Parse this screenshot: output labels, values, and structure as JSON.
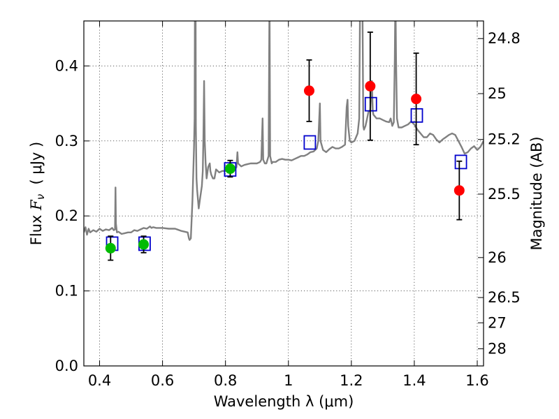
{
  "chart_data": {
    "type": "scatter",
    "xlabel": "Wavelength  λ (μm)",
    "ylabel": "Flux  F_ν  ( μJy )",
    "ylabel_parts": {
      "prefix": "Flux ",
      "symbol": "F",
      "sub": "ν",
      "unit": "( μJy )"
    },
    "y2label": "Magnitude (AB)",
    "xlim": [
      0.35,
      1.62
    ],
    "ylim": [
      0.0,
      0.46
    ],
    "grid": true,
    "xticks": [
      0.4,
      0.6,
      0.8,
      1.0,
      1.2,
      1.4,
      1.6
    ],
    "xtick_labels": [
      "0.4",
      "0.6",
      "0.8",
      "1",
      "1.2",
      "1.4",
      "1.6"
    ],
    "yticks": [
      0.0,
      0.1,
      0.2,
      0.3,
      0.4
    ],
    "ytick_labels": [
      "0.0",
      "0.1",
      "0.2",
      "0.3",
      "0.4"
    ],
    "right_axis_ticks": [
      {
        "label": "24.8",
        "flux": 0.4365
      },
      {
        "label": "25",
        "flux": 0.3631
      },
      {
        "label": "25.2",
        "flux": 0.302
      },
      {
        "label": "25.5",
        "flux": 0.2291
      },
      {
        "label": "26",
        "flux": 0.1445
      },
      {
        "label": "26.5",
        "flux": 0.0912
      },
      {
        "label": "27",
        "flux": 0.0575
      },
      {
        "label": "28",
        "flux": 0.0229
      }
    ],
    "series": [
      {
        "kind": "spectrum",
        "color": "#808080",
        "points": [
          [
            0.35,
            0.178
          ],
          [
            0.355,
            0.185
          ],
          [
            0.36,
            0.175
          ],
          [
            0.365,
            0.183
          ],
          [
            0.37,
            0.178
          ],
          [
            0.38,
            0.181
          ],
          [
            0.39,
            0.179
          ],
          [
            0.4,
            0.183
          ],
          [
            0.41,
            0.18
          ],
          [
            0.42,
            0.182
          ],
          [
            0.43,
            0.181
          ],
          [
            0.44,
            0.184
          ],
          [
            0.445,
            0.181
          ],
          [
            0.449,
            0.182
          ],
          [
            0.4505,
            0.238
          ],
          [
            0.452,
            0.19
          ],
          [
            0.455,
            0.178
          ],
          [
            0.46,
            0.179
          ],
          [
            0.47,
            0.176
          ],
          [
            0.48,
            0.177
          ],
          [
            0.49,
            0.178
          ],
          [
            0.5,
            0.178
          ],
          [
            0.51,
            0.181
          ],
          [
            0.52,
            0.18
          ],
          [
            0.53,
            0.182
          ],
          [
            0.54,
            0.184
          ],
          [
            0.55,
            0.183
          ],
          [
            0.56,
            0.186
          ],
          [
            0.565,
            0.184
          ],
          [
            0.57,
            0.185
          ],
          [
            0.58,
            0.184
          ],
          [
            0.6,
            0.184
          ],
          [
            0.62,
            0.183
          ],
          [
            0.64,
            0.183
          ],
          [
            0.66,
            0.18
          ],
          [
            0.68,
            0.178
          ],
          [
            0.684,
            0.17
          ],
          [
            0.686,
            0.168
          ],
          [
            0.69,
            0.17
          ],
          [
            0.695,
            0.22
          ],
          [
            0.7,
            0.29
          ],
          [
            0.702,
            0.33
          ],
          [
            0.703,
            0.5
          ],
          [
            0.705,
            0.5
          ],
          [
            0.706,
            0.32
          ],
          [
            0.708,
            0.25
          ],
          [
            0.71,
            0.235
          ],
          [
            0.715,
            0.21
          ],
          [
            0.72,
            0.225
          ],
          [
            0.725,
            0.24
          ],
          [
            0.728,
            0.26
          ],
          [
            0.73,
            0.305
          ],
          [
            0.732,
            0.38
          ],
          [
            0.734,
            0.3
          ],
          [
            0.737,
            0.27
          ],
          [
            0.74,
            0.25
          ],
          [
            0.745,
            0.265
          ],
          [
            0.75,
            0.27
          ],
          [
            0.752,
            0.26
          ],
          [
            0.755,
            0.255
          ],
          [
            0.76,
            0.25
          ],
          [
            0.765,
            0.25
          ],
          [
            0.77,
            0.262
          ],
          [
            0.78,
            0.258
          ],
          [
            0.79,
            0.26
          ],
          [
            0.8,
            0.26
          ],
          [
            0.81,
            0.262
          ],
          [
            0.82,
            0.263
          ],
          [
            0.83,
            0.262
          ],
          [
            0.835,
            0.265
          ],
          [
            0.838,
            0.285
          ],
          [
            0.84,
            0.27
          ],
          [
            0.85,
            0.266
          ],
          [
            0.86,
            0.268
          ],
          [
            0.87,
            0.269
          ],
          [
            0.88,
            0.27
          ],
          [
            0.89,
            0.27
          ],
          [
            0.9,
            0.27
          ],
          [
            0.91,
            0.272
          ],
          [
            0.914,
            0.275
          ],
          [
            0.918,
            0.33
          ],
          [
            0.92,
            0.275
          ],
          [
            0.925,
            0.27
          ],
          [
            0.93,
            0.27
          ],
          [
            0.937,
            0.28
          ],
          [
            0.94,
            0.5
          ],
          [
            0.942,
            0.28
          ],
          [
            0.947,
            0.27
          ],
          [
            0.95,
            0.272
          ],
          [
            0.96,
            0.272
          ],
          [
            0.97,
            0.275
          ],
          [
            0.98,
            0.276
          ],
          [
            0.99,
            0.275
          ],
          [
            1.0,
            0.275
          ],
          [
            1.01,
            0.274
          ],
          [
            1.02,
            0.276
          ],
          [
            1.03,
            0.278
          ],
          [
            1.04,
            0.28
          ],
          [
            1.05,
            0.28
          ],
          [
            1.06,
            0.282
          ],
          [
            1.07,
            0.285
          ],
          [
            1.08,
            0.286
          ],
          [
            1.09,
            0.29
          ],
          [
            1.095,
            0.3
          ],
          [
            1.1,
            0.35
          ],
          [
            1.102,
            0.3
          ],
          [
            1.11,
            0.288
          ],
          [
            1.12,
            0.285
          ],
          [
            1.13,
            0.289
          ],
          [
            1.14,
            0.292
          ],
          [
            1.15,
            0.29
          ],
          [
            1.16,
            0.29
          ],
          [
            1.17,
            0.292
          ],
          [
            1.18,
            0.295
          ],
          [
            1.185,
            0.345
          ],
          [
            1.188,
            0.355
          ],
          [
            1.19,
            0.32
          ],
          [
            1.195,
            0.3
          ],
          [
            1.2,
            0.298
          ],
          [
            1.21,
            0.3
          ],
          [
            1.22,
            0.31
          ],
          [
            1.225,
            0.33
          ],
          [
            1.228,
            0.5
          ],
          [
            1.235,
            0.5
          ],
          [
            1.238,
            0.32
          ],
          [
            1.24,
            0.315
          ],
          [
            1.245,
            0.32
          ],
          [
            1.25,
            0.33
          ],
          [
            1.255,
            0.34
          ],
          [
            1.26,
            0.34
          ],
          [
            1.265,
            0.38
          ],
          [
            1.268,
            0.34
          ],
          [
            1.27,
            0.335
          ],
          [
            1.28,
            0.33
          ],
          [
            1.29,
            0.33
          ],
          [
            1.3,
            0.328
          ],
          [
            1.31,
            0.326
          ],
          [
            1.32,
            0.325
          ],
          [
            1.325,
            0.33
          ],
          [
            1.33,
            0.32
          ],
          [
            1.335,
            0.325
          ],
          [
            1.338,
            0.41
          ],
          [
            1.34,
            0.5
          ],
          [
            1.342,
            0.41
          ],
          [
            1.345,
            0.33
          ],
          [
            1.35,
            0.318
          ],
          [
            1.36,
            0.318
          ],
          [
            1.37,
            0.32
          ],
          [
            1.38,
            0.322
          ],
          [
            1.39,
            0.326
          ],
          [
            1.4,
            0.322
          ],
          [
            1.41,
            0.315
          ],
          [
            1.42,
            0.31
          ],
          [
            1.43,
            0.305
          ],
          [
            1.44,
            0.305
          ],
          [
            1.45,
            0.31
          ],
          [
            1.46,
            0.308
          ],
          [
            1.47,
            0.302
          ],
          [
            1.48,
            0.298
          ],
          [
            1.49,
            0.302
          ],
          [
            1.5,
            0.305
          ],
          [
            1.51,
            0.308
          ],
          [
            1.52,
            0.31
          ],
          [
            1.53,
            0.308
          ],
          [
            1.54,
            0.3
          ],
          [
            1.55,
            0.292
          ],
          [
            1.56,
            0.283
          ],
          [
            1.57,
            0.285
          ],
          [
            1.58,
            0.29
          ],
          [
            1.59,
            0.293
          ],
          [
            1.6,
            0.288
          ],
          [
            1.61,
            0.292
          ],
          [
            1.62,
            0.3
          ]
        ]
      },
      {
        "kind": "model-photometry",
        "marker": "open-square",
        "color": "#0000cc",
        "points": [
          [
            0.44,
            0.163
          ],
          [
            0.543,
            0.163
          ],
          [
            0.815,
            0.262
          ],
          [
            1.068,
            0.298
          ],
          [
            1.262,
            0.349
          ],
          [
            1.408,
            0.334
          ],
          [
            1.548,
            0.272
          ]
        ]
      },
      {
        "kind": "measured",
        "marker": "filled-circle",
        "color": "#00bb00",
        "points": [
          {
            "x": 0.435,
            "y": 0.157,
            "err": 0.016
          },
          {
            "x": 0.54,
            "y": 0.162,
            "err": 0.011
          },
          {
            "x": 0.815,
            "y": 0.263,
            "err": 0.011
          }
        ]
      },
      {
        "kind": "measured",
        "marker": "filled-circle",
        "color": "#ff0000",
        "points": [
          {
            "x": 1.066,
            "y": 0.367,
            "err": 0.041
          },
          {
            "x": 1.26,
            "y": 0.373,
            "err": 0.072
          },
          {
            "x": 1.406,
            "y": 0.356,
            "err": 0.061
          },
          {
            "x": 1.543,
            "y": 0.234,
            "err": 0.039
          }
        ]
      }
    ]
  }
}
